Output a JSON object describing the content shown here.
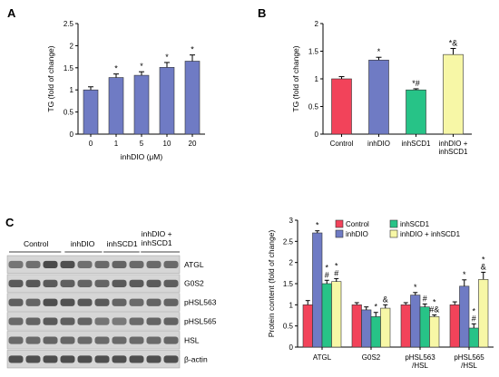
{
  "panels": {
    "a": "A",
    "b": "B",
    "c": "C"
  },
  "colors": {
    "blue": "#6f7bc4",
    "red": "#f2435a",
    "green": "#27c387",
    "yellow": "#f7f7a6",
    "error": "#000000"
  },
  "blot": {
    "lanes": [
      "Control",
      "inhDIO",
      "inhSCD1",
      "inhDIO +\ninhSCD1"
    ],
    "bands": [
      "ATGL",
      "G0S2",
      "pHSL563",
      "pHSL565",
      "HSL",
      "β-actin"
    ]
  },
  "chart_data": [
    {
      "id": "A",
      "type": "bar",
      "categories": [
        "0",
        "1",
        "5",
        "10",
        "20"
      ],
      "values": [
        1.0,
        1.28,
        1.33,
        1.51,
        1.65
      ],
      "errors": [
        0.07,
        0.08,
        0.08,
        0.11,
        0.14
      ],
      "annotations": [
        "",
        "*",
        "*",
        "*",
        "*"
      ],
      "xlabel": "inhDIO (μM)",
      "ylabel": "TG (fold of change)",
      "ylim": [
        0,
        2.5
      ],
      "yticks": [
        "0",
        "0.5",
        "1",
        "1.5",
        "2",
        "2.5"
      ],
      "colors": [
        "#6f7bc4",
        "#6f7bc4",
        "#6f7bc4",
        "#6f7bc4",
        "#6f7bc4"
      ]
    },
    {
      "id": "B",
      "type": "bar",
      "categories": [
        "Control",
        "inhDIO",
        "inhSCD1",
        "inhDIO +\ninhSCD1"
      ],
      "values": [
        1.0,
        1.34,
        0.8,
        1.44
      ],
      "errors": [
        0.04,
        0.05,
        0.02,
        0.11
      ],
      "annotations": [
        "",
        "*",
        "*#",
        "*&"
      ],
      "xlabel": "",
      "ylabel": "TG (fold of change)",
      "ylim": [
        0,
        2
      ],
      "yticks": [
        "0",
        "0.5",
        "1",
        "1.5",
        "2"
      ],
      "colors": [
        "#f2435a",
        "#6f7bc4",
        "#27c387",
        "#f7f7a6"
      ]
    },
    {
      "id": "C",
      "type": "bar",
      "categories": [
        "ATGL",
        "G0S2",
        "pHSL563\n/HSL",
        "pHSL565\n/HSL"
      ],
      "series": [
        {
          "name": "Control",
          "values": [
            1.0,
            1.0,
            1.0,
            1.0
          ],
          "errors": [
            0.1,
            0.05,
            0.05,
            0.07
          ],
          "annotations": [
            "",
            "",
            "",
            ""
          ]
        },
        {
          "name": "inhDIO",
          "values": [
            2.7,
            0.88,
            1.23,
            1.44
          ],
          "errors": [
            0.05,
            0.07,
            0.06,
            0.15
          ],
          "annotations": [
            "*",
            "",
            "*",
            "*"
          ]
        },
        {
          "name": "inhSCD1",
          "values": [
            1.5,
            0.72,
            0.95,
            0.45
          ],
          "errors": [
            0.08,
            0.1,
            0.07,
            0.1
          ],
          "annotations": [
            "*\n#",
            "*",
            "#",
            "*\n#"
          ]
        },
        {
          "name": "inhDIO + inhSCD1",
          "values": [
            1.55,
            0.92,
            0.72,
            1.6
          ],
          "errors": [
            0.07,
            0.08,
            0.04,
            0.17
          ],
          "annotations": [
            "*\n#",
            "&",
            "*\n#&",
            "*\n&"
          ]
        }
      ],
      "xlabel": "",
      "ylabel": "Protein content (fold of change)",
      "ylim": [
        0,
        3
      ],
      "yticks": [
        "0",
        "0.5",
        "1",
        "1.5",
        "2",
        "2.5",
        "3"
      ],
      "legend": "top",
      "colors": [
        "#f2435a",
        "#6f7bc4",
        "#27c387",
        "#f7f7a6"
      ]
    }
  ]
}
